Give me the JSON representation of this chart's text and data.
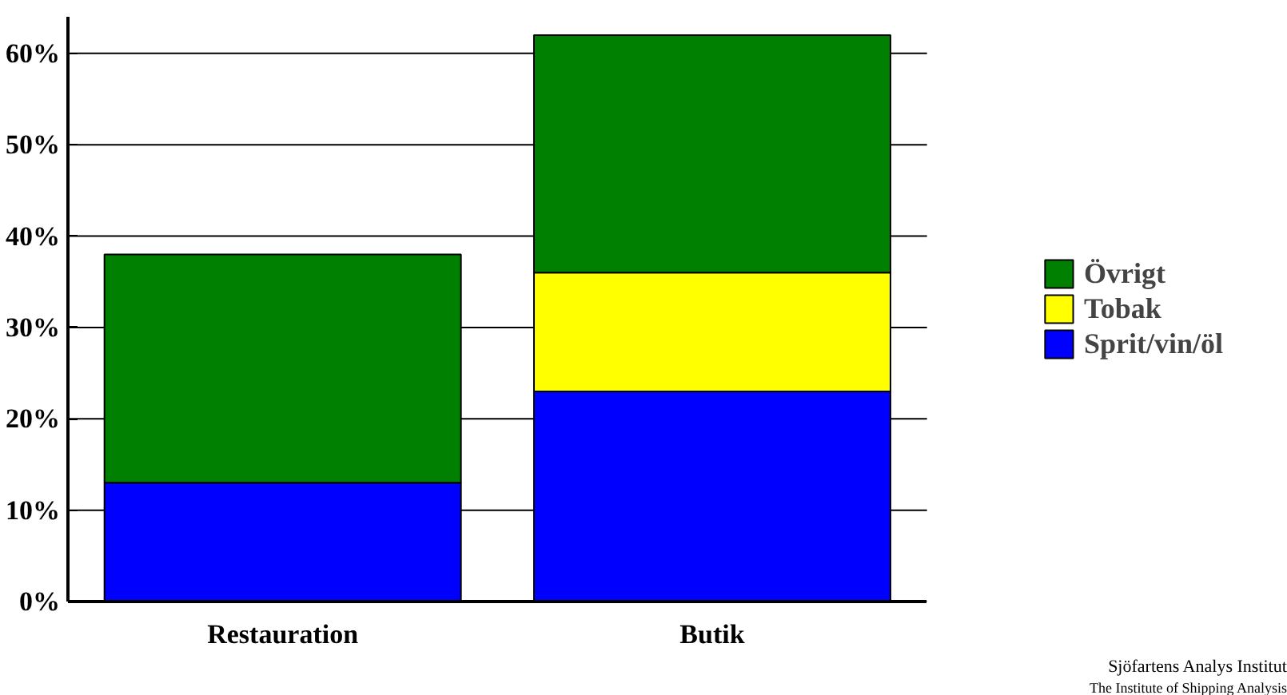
{
  "chart_data": {
    "type": "bar",
    "stacked": true,
    "categories": [
      "Restauration",
      "Butik"
    ],
    "series": [
      {
        "name": "Sprit/vin/öl",
        "color": "#0000ff",
        "values": [
          13,
          23
        ]
      },
      {
        "name": "Tobak",
        "color": "#ffff00",
        "values": [
          null,
          13
        ]
      },
      {
        "name": "Övrigt",
        "color": "#008000",
        "values": [
          25,
          26
        ]
      }
    ],
    "ylim": [
      0,
      64
    ],
    "yticks": [
      {
        "value": 0,
        "label": "0%"
      },
      {
        "value": 10,
        "label": "10%"
      },
      {
        "value": 20,
        "label": "20%"
      },
      {
        "value": 30,
        "label": "30%"
      },
      {
        "value": 40,
        "label": "40%"
      },
      {
        "value": 50,
        "label": "50%"
      },
      {
        "value": 60,
        "label": "60%"
      }
    ],
    "grid": "y",
    "legend": "right",
    "annotations": [
      "Sjöfartens Analys Institut",
      "The Institute of Shipping Analysis"
    ]
  }
}
